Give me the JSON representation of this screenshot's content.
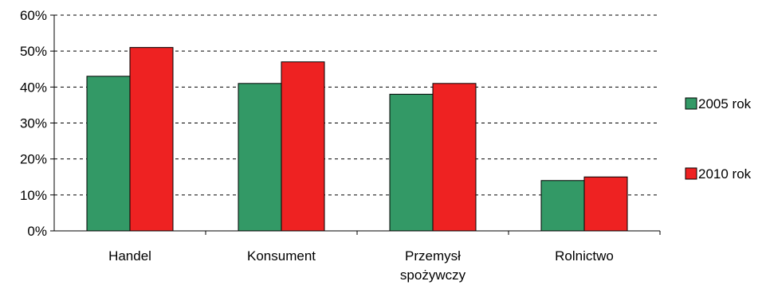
{
  "chart_data": {
    "type": "bar",
    "categories": [
      [
        "Handel"
      ],
      [
        "Konsument"
      ],
      [
        "Przemysł",
        "spożywczy"
      ],
      [
        "Rolnictwo"
      ]
    ],
    "series": [
      {
        "name": "2005 rok",
        "color": "#339966",
        "values": [
          43,
          41,
          38,
          14
        ]
      },
      {
        "name": "2010 rok",
        "color": "#ee2222",
        "values": [
          51,
          47,
          41,
          15
        ]
      }
    ],
    "y_ticks": [
      "0%",
      "10%",
      "20%",
      "30%",
      "40%",
      "50%",
      "60%"
    ],
    "ylim": [
      0,
      60
    ],
    "grid": "dashed horizontal",
    "legend_position": "right"
  }
}
